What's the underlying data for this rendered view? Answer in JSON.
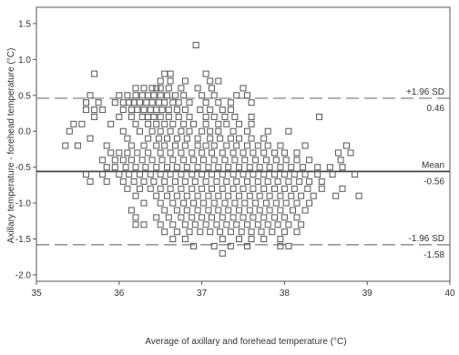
{
  "chart_data": {
    "type": "scatter",
    "title": "",
    "xlabel": "Average of axillary and forehead temperature (°C)",
    "ylabel": "Axillary temperature - forehead temperature (°C)",
    "xlim": [
      35,
      40
    ],
    "ylim": [
      -2.0,
      1.6
    ],
    "xticks": [
      "35",
      "36",
      "37",
      "38",
      "39",
      "40"
    ],
    "yticks": [
      "-2.0",
      "-1.5",
      "-1.0",
      "-0.5",
      "0.0",
      "0.5",
      "1.0",
      "1.5"
    ],
    "grid": false,
    "marker": "open-square",
    "reference_lines": [
      {
        "name": "upper-loa",
        "y": 0.46,
        "style": "dashed",
        "label": "+1.96 SD",
        "value_label": "0.46"
      },
      {
        "name": "mean",
        "y": -0.56,
        "style": "solid",
        "label": "Mean",
        "value_label": "-0.56"
      },
      {
        "name": "lower-loa",
        "y": -1.58,
        "style": "dashed",
        "label": "-1.96 SD",
        "value_label": "-1.58"
      }
    ],
    "points": [
      [
        36.93,
        1.2
      ],
      [
        35.7,
        0.8
      ],
      [
        36.55,
        0.8
      ],
      [
        36.62,
        0.8
      ],
      [
        37.05,
        0.8
      ],
      [
        36.5,
        0.7
      ],
      [
        36.62,
        0.7
      ],
      [
        36.8,
        0.7
      ],
      [
        37.1,
        0.7
      ],
      [
        37.2,
        0.7
      ],
      [
        36.2,
        0.6
      ],
      [
        36.3,
        0.6
      ],
      [
        36.4,
        0.6
      ],
      [
        36.45,
        0.6
      ],
      [
        36.5,
        0.6
      ],
      [
        36.6,
        0.6
      ],
      [
        36.75,
        0.6
      ],
      [
        36.95,
        0.6
      ],
      [
        37.12,
        0.6
      ],
      [
        37.5,
        0.6
      ],
      [
        35.65,
        0.5
      ],
      [
        36.0,
        0.5
      ],
      [
        36.1,
        0.5
      ],
      [
        36.2,
        0.5
      ],
      [
        36.28,
        0.5
      ],
      [
        36.35,
        0.5
      ],
      [
        36.42,
        0.5
      ],
      [
        36.5,
        0.5
      ],
      [
        36.58,
        0.5
      ],
      [
        36.68,
        0.5
      ],
      [
        36.78,
        0.5
      ],
      [
        37.0,
        0.5
      ],
      [
        37.15,
        0.5
      ],
      [
        37.42,
        0.5
      ],
      [
        37.55,
        0.5
      ],
      [
        35.45,
        0.1
      ],
      [
        35.6,
        0.4
      ],
      [
        35.75,
        0.4
      ],
      [
        35.95,
        0.4
      ],
      [
        36.05,
        0.4
      ],
      [
        36.12,
        0.4
      ],
      [
        36.18,
        0.4
      ],
      [
        36.25,
        0.4
      ],
      [
        36.33,
        0.4
      ],
      [
        36.4,
        0.4
      ],
      [
        36.48,
        0.4
      ],
      [
        36.55,
        0.4
      ],
      [
        36.65,
        0.4
      ],
      [
        36.72,
        0.4
      ],
      [
        36.85,
        0.4
      ],
      [
        37.05,
        0.4
      ],
      [
        37.2,
        0.4
      ],
      [
        37.35,
        0.4
      ],
      [
        37.6,
        0.4
      ],
      [
        35.6,
        0.3
      ],
      [
        35.7,
        0.3
      ],
      [
        35.8,
        0.3
      ],
      [
        36.05,
        0.3
      ],
      [
        36.15,
        0.3
      ],
      [
        36.22,
        0.3
      ],
      [
        36.3,
        0.3
      ],
      [
        36.38,
        0.3
      ],
      [
        36.45,
        0.3
      ],
      [
        36.52,
        0.3
      ],
      [
        36.6,
        0.3
      ],
      [
        36.7,
        0.3
      ],
      [
        36.8,
        0.3
      ],
      [
        36.98,
        0.3
      ],
      [
        37.1,
        0.3
      ],
      [
        37.25,
        0.3
      ],
      [
        37.35,
        0.3
      ],
      [
        35.7,
        0.2
      ],
      [
        36.0,
        0.2
      ],
      [
        36.15,
        0.2
      ],
      [
        36.28,
        0.2
      ],
      [
        36.35,
        0.2
      ],
      [
        36.42,
        0.2
      ],
      [
        36.5,
        0.2
      ],
      [
        36.6,
        0.2
      ],
      [
        36.72,
        0.2
      ],
      [
        36.85,
        0.2
      ],
      [
        37.05,
        0.2
      ],
      [
        37.15,
        0.2
      ],
      [
        37.28,
        0.2
      ],
      [
        37.4,
        0.2
      ],
      [
        37.6,
        0.2
      ],
      [
        38.42,
        0.2
      ],
      [
        35.55,
        0.1
      ],
      [
        35.9,
        0.1
      ],
      [
        36.2,
        0.1
      ],
      [
        36.35,
        0.1
      ],
      [
        36.45,
        0.1
      ],
      [
        36.55,
        0.1
      ],
      [
        36.65,
        0.1
      ],
      [
        36.78,
        0.1
      ],
      [
        36.9,
        0.1
      ],
      [
        37.05,
        0.1
      ],
      [
        37.2,
        0.1
      ],
      [
        37.3,
        0.1
      ],
      [
        37.45,
        0.1
      ],
      [
        37.6,
        0.1
      ],
      [
        35.4,
        0.0
      ],
      [
        36.05,
        0.0
      ],
      [
        36.25,
        0.0
      ],
      [
        36.4,
        0.0
      ],
      [
        36.5,
        0.0
      ],
      [
        36.62,
        0.0
      ],
      [
        36.75,
        0.0
      ],
      [
        36.85,
        0.0
      ],
      [
        37.0,
        0.0
      ],
      [
        37.1,
        0.0
      ],
      [
        37.2,
        0.0
      ],
      [
        37.38,
        0.0
      ],
      [
        37.55,
        0.0
      ],
      [
        37.8,
        0.0
      ],
      [
        38.05,
        0.0
      ],
      [
        35.65,
        -0.1
      ],
      [
        36.1,
        -0.1
      ],
      [
        36.35,
        -0.1
      ],
      [
        36.48,
        -0.1
      ],
      [
        36.58,
        -0.1
      ],
      [
        36.7,
        -0.1
      ],
      [
        36.82,
        -0.1
      ],
      [
        36.95,
        -0.1
      ],
      [
        37.1,
        -0.1
      ],
      [
        37.22,
        -0.1
      ],
      [
        37.35,
        -0.1
      ],
      [
        37.45,
        -0.1
      ],
      [
        37.6,
        -0.1
      ],
      [
        37.75,
        -0.1
      ],
      [
        35.35,
        -0.2
      ],
      [
        35.5,
        -0.2
      ],
      [
        35.85,
        -0.2
      ],
      [
        36.15,
        -0.2
      ],
      [
        36.3,
        -0.2
      ],
      [
        36.45,
        -0.2
      ],
      [
        36.55,
        -0.2
      ],
      [
        36.68,
        -0.2
      ],
      [
        36.8,
        -0.2
      ],
      [
        36.95,
        -0.2
      ],
      [
        37.05,
        -0.2
      ],
      [
        37.15,
        -0.2
      ],
      [
        37.3,
        -0.2
      ],
      [
        37.42,
        -0.2
      ],
      [
        37.55,
        -0.2
      ],
      [
        37.68,
        -0.2
      ],
      [
        37.8,
        -0.2
      ],
      [
        37.95,
        -0.2
      ],
      [
        38.25,
        -0.2
      ],
      [
        38.75,
        -0.2
      ],
      [
        35.9,
        -0.3
      ],
      [
        36.0,
        -0.3
      ],
      [
        36.1,
        -0.3
      ],
      [
        36.22,
        -0.3
      ],
      [
        36.35,
        -0.3
      ],
      [
        36.5,
        -0.3
      ],
      [
        36.62,
        -0.3
      ],
      [
        36.75,
        -0.3
      ],
      [
        36.88,
        -0.3
      ],
      [
        37.0,
        -0.3
      ],
      [
        37.12,
        -0.3
      ],
      [
        37.25,
        -0.3
      ],
      [
        37.38,
        -0.3
      ],
      [
        37.5,
        -0.3
      ],
      [
        37.62,
        -0.3
      ],
      [
        37.75,
        -0.3
      ],
      [
        37.88,
        -0.3
      ],
      [
        38.0,
        -0.3
      ],
      [
        38.15,
        -0.3
      ],
      [
        38.65,
        -0.3
      ],
      [
        38.8,
        -0.3
      ],
      [
        35.8,
        -0.4
      ],
      [
        35.95,
        -0.4
      ],
      [
        36.05,
        -0.4
      ],
      [
        36.15,
        -0.4
      ],
      [
        36.28,
        -0.4
      ],
      [
        36.4,
        -0.4
      ],
      [
        36.52,
        -0.4
      ],
      [
        36.65,
        -0.4
      ],
      [
        36.78,
        -0.4
      ],
      [
        36.9,
        -0.4
      ],
      [
        37.02,
        -0.4
      ],
      [
        37.15,
        -0.4
      ],
      [
        37.28,
        -0.4
      ],
      [
        37.4,
        -0.4
      ],
      [
        37.52,
        -0.4
      ],
      [
        37.65,
        -0.4
      ],
      [
        37.78,
        -0.4
      ],
      [
        37.9,
        -0.4
      ],
      [
        38.02,
        -0.4
      ],
      [
        38.15,
        -0.4
      ],
      [
        38.3,
        -0.4
      ],
      [
        38.68,
        -0.4
      ],
      [
        35.85,
        -0.5
      ],
      [
        35.95,
        -0.5
      ],
      [
        36.08,
        -0.5
      ],
      [
        36.2,
        -0.5
      ],
      [
        36.32,
        -0.5
      ],
      [
        36.45,
        -0.5
      ],
      [
        36.58,
        -0.5
      ],
      [
        36.7,
        -0.5
      ],
      [
        36.82,
        -0.5
      ],
      [
        36.95,
        -0.5
      ],
      [
        37.08,
        -0.5
      ],
      [
        37.2,
        -0.5
      ],
      [
        37.32,
        -0.5
      ],
      [
        37.45,
        -0.5
      ],
      [
        37.58,
        -0.5
      ],
      [
        37.7,
        -0.5
      ],
      [
        37.82,
        -0.5
      ],
      [
        37.95,
        -0.5
      ],
      [
        38.08,
        -0.5
      ],
      [
        38.22,
        -0.5
      ],
      [
        38.4,
        -0.5
      ],
      [
        38.55,
        -0.5
      ],
      [
        38.7,
        -0.5
      ],
      [
        35.6,
        -0.6
      ],
      [
        35.8,
        -0.6
      ],
      [
        36.0,
        -0.6
      ],
      [
        36.12,
        -0.6
      ],
      [
        36.25,
        -0.6
      ],
      [
        36.38,
        -0.6
      ],
      [
        36.5,
        -0.6
      ],
      [
        36.62,
        -0.6
      ],
      [
        36.75,
        -0.6
      ],
      [
        36.88,
        -0.6
      ],
      [
        37.0,
        -0.6
      ],
      [
        37.12,
        -0.6
      ],
      [
        37.25,
        -0.6
      ],
      [
        37.38,
        -0.6
      ],
      [
        37.5,
        -0.6
      ],
      [
        37.62,
        -0.6
      ],
      [
        37.75,
        -0.6
      ],
      [
        37.88,
        -0.6
      ],
      [
        38.0,
        -0.6
      ],
      [
        38.12,
        -0.6
      ],
      [
        38.25,
        -0.6
      ],
      [
        38.4,
        -0.6
      ],
      [
        38.58,
        -0.6
      ],
      [
        38.85,
        -0.6
      ],
      [
        35.65,
        -0.7
      ],
      [
        35.85,
        -0.7
      ],
      [
        36.05,
        -0.7
      ],
      [
        36.18,
        -0.7
      ],
      [
        36.3,
        -0.7
      ],
      [
        36.42,
        -0.7
      ],
      [
        36.55,
        -0.7
      ],
      [
        36.68,
        -0.7
      ],
      [
        36.8,
        -0.7
      ],
      [
        36.92,
        -0.7
      ],
      [
        37.05,
        -0.7
      ],
      [
        37.18,
        -0.7
      ],
      [
        37.3,
        -0.7
      ],
      [
        37.42,
        -0.7
      ],
      [
        37.55,
        -0.7
      ],
      [
        37.68,
        -0.7
      ],
      [
        37.8,
        -0.7
      ],
      [
        37.92,
        -0.7
      ],
      [
        38.05,
        -0.7
      ],
      [
        38.18,
        -0.7
      ],
      [
        38.3,
        -0.7
      ],
      [
        38.45,
        -0.7
      ],
      [
        36.1,
        -0.8
      ],
      [
        36.25,
        -0.8
      ],
      [
        36.38,
        -0.8
      ],
      [
        36.5,
        -0.8
      ],
      [
        36.62,
        -0.8
      ],
      [
        36.75,
        -0.8
      ],
      [
        36.88,
        -0.8
      ],
      [
        37.0,
        -0.8
      ],
      [
        37.12,
        -0.8
      ],
      [
        37.25,
        -0.8
      ],
      [
        37.38,
        -0.8
      ],
      [
        37.5,
        -0.8
      ],
      [
        37.62,
        -0.8
      ],
      [
        37.75,
        -0.8
      ],
      [
        37.88,
        -0.8
      ],
      [
        38.0,
        -0.8
      ],
      [
        38.12,
        -0.8
      ],
      [
        38.28,
        -0.8
      ],
      [
        38.45,
        -0.8
      ],
      [
        38.7,
        -0.8
      ],
      [
        36.2,
        -0.9
      ],
      [
        36.45,
        -0.9
      ],
      [
        36.58,
        -0.9
      ],
      [
        36.7,
        -0.9
      ],
      [
        36.82,
        -0.9
      ],
      [
        36.95,
        -0.9
      ],
      [
        37.08,
        -0.9
      ],
      [
        37.2,
        -0.9
      ],
      [
        37.32,
        -0.9
      ],
      [
        37.45,
        -0.9
      ],
      [
        37.58,
        -0.9
      ],
      [
        37.7,
        -0.9
      ],
      [
        37.82,
        -0.9
      ],
      [
        37.95,
        -0.9
      ],
      [
        38.08,
        -0.9
      ],
      [
        38.2,
        -0.9
      ],
      [
        38.35,
        -0.9
      ],
      [
        38.62,
        -0.9
      ],
      [
        38.9,
        -0.9
      ],
      [
        36.3,
        -1.0
      ],
      [
        36.5,
        -1.0
      ],
      [
        36.65,
        -1.0
      ],
      [
        36.78,
        -1.0
      ],
      [
        36.9,
        -1.0
      ],
      [
        37.02,
        -1.0
      ],
      [
        37.15,
        -1.0
      ],
      [
        37.28,
        -1.0
      ],
      [
        37.4,
        -1.0
      ],
      [
        37.52,
        -1.0
      ],
      [
        37.65,
        -1.0
      ],
      [
        37.78,
        -1.0
      ],
      [
        37.9,
        -1.0
      ],
      [
        38.02,
        -1.0
      ],
      [
        38.15,
        -1.0
      ],
      [
        38.3,
        -1.0
      ],
      [
        36.15,
        -1.1
      ],
      [
        36.55,
        -1.1
      ],
      [
        36.7,
        -1.1
      ],
      [
        36.82,
        -1.1
      ],
      [
        36.95,
        -1.1
      ],
      [
        37.08,
        -1.1
      ],
      [
        37.2,
        -1.1
      ],
      [
        37.32,
        -1.1
      ],
      [
        37.45,
        -1.1
      ],
      [
        37.58,
        -1.1
      ],
      [
        37.7,
        -1.1
      ],
      [
        37.82,
        -1.1
      ],
      [
        37.95,
        -1.1
      ],
      [
        38.1,
        -1.1
      ],
      [
        38.25,
        -1.1
      ],
      [
        36.2,
        -1.2
      ],
      [
        36.45,
        -1.2
      ],
      [
        36.6,
        -1.2
      ],
      [
        36.75,
        -1.2
      ],
      [
        36.88,
        -1.2
      ],
      [
        37.0,
        -1.2
      ],
      [
        37.12,
        -1.2
      ],
      [
        37.25,
        -1.2
      ],
      [
        37.38,
        -1.2
      ],
      [
        37.5,
        -1.2
      ],
      [
        37.62,
        -1.2
      ],
      [
        37.75,
        -1.2
      ],
      [
        37.88,
        -1.2
      ],
      [
        38.0,
        -1.2
      ],
      [
        38.15,
        -1.2
      ],
      [
        36.2,
        -1.3
      ],
      [
        36.3,
        -1.3
      ],
      [
        36.5,
        -1.3
      ],
      [
        36.65,
        -1.3
      ],
      [
        36.8,
        -1.3
      ],
      [
        36.92,
        -1.3
      ],
      [
        37.05,
        -1.3
      ],
      [
        37.18,
        -1.3
      ],
      [
        37.3,
        -1.3
      ],
      [
        37.42,
        -1.3
      ],
      [
        37.55,
        -1.3
      ],
      [
        37.68,
        -1.3
      ],
      [
        37.8,
        -1.3
      ],
      [
        37.92,
        -1.3
      ],
      [
        38.05,
        -1.3
      ],
      [
        38.2,
        -1.3
      ],
      [
        36.55,
        -1.4
      ],
      [
        36.7,
        -1.4
      ],
      [
        36.85,
        -1.4
      ],
      [
        36.98,
        -1.4
      ],
      [
        37.1,
        -1.4
      ],
      [
        37.22,
        -1.4
      ],
      [
        37.35,
        -1.4
      ],
      [
        37.48,
        -1.4
      ],
      [
        37.6,
        -1.4
      ],
      [
        37.72,
        -1.4
      ],
      [
        37.85,
        -1.4
      ],
      [
        38.0,
        -1.4
      ],
      [
        38.15,
        -1.4
      ],
      [
        36.65,
        -1.5
      ],
      [
        36.8,
        -1.5
      ],
      [
        37.25,
        -1.5
      ],
      [
        37.45,
        -1.5
      ],
      [
        37.6,
        -1.5
      ],
      [
        37.75,
        -1.5
      ],
      [
        37.95,
        -1.5
      ],
      [
        36.9,
        -1.6
      ],
      [
        37.15,
        -1.6
      ],
      [
        37.35,
        -1.6
      ],
      [
        37.55,
        -1.6
      ],
      [
        37.95,
        -1.6
      ],
      [
        38.05,
        -1.6
      ],
      [
        37.25,
        -1.7
      ]
    ]
  }
}
